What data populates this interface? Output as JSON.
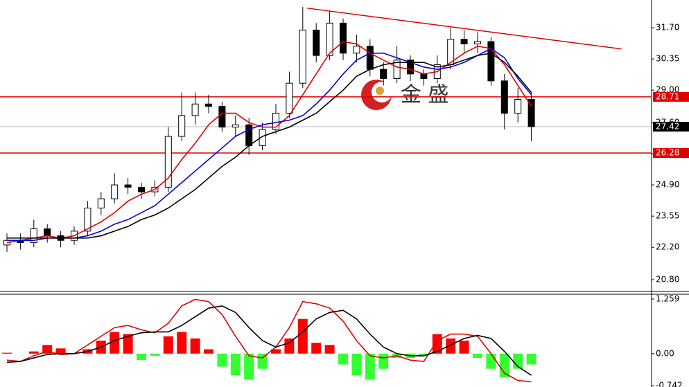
{
  "chart_data": [
    {
      "type": "candlestick",
      "open": [
        22.3,
        22.5,
        22.4,
        23.0,
        22.7,
        22.5,
        22.9,
        23.9,
        24.3,
        24.9,
        24.8,
        24.6,
        24.8,
        27.0,
        27.9,
        28.4,
        28.3,
        27.4,
        27.5,
        26.6,
        27.3,
        28.0,
        29.3,
        31.6,
        30.5,
        31.9,
        30.6,
        30.9,
        29.9,
        29.5,
        30.3,
        29.7,
        29.5,
        30.1,
        31.2,
        31.0,
        31.1,
        29.4,
        28.0,
        28.6
      ],
      "high": [
        22.8,
        22.8,
        23.4,
        23.2,
        22.9,
        23.1,
        24.2,
        24.6,
        25.4,
        25.2,
        25.0,
        25.1,
        27.4,
        28.9,
        28.9,
        28.8,
        28.5,
        27.9,
        27.8,
        27.6,
        28.4,
        29.8,
        32.6,
        31.9,
        32.4,
        32.1,
        31.4,
        31.2,
        30.2,
        30.9,
        30.5,
        29.9,
        30.5,
        31.7,
        31.6,
        31.5,
        31.3,
        29.7,
        29.1,
        28.9
      ],
      "low": [
        22.0,
        22.1,
        22.2,
        22.4,
        22.2,
        22.3,
        22.7,
        23.6,
        24.1,
        24.5,
        24.3,
        24.4,
        24.6,
        26.8,
        27.5,
        28.0,
        27.2,
        27.0,
        26.2,
        26.4,
        27.1,
        27.8,
        29.1,
        30.2,
        30.3,
        30.3,
        30.2,
        29.6,
        29.2,
        29.3,
        29.4,
        29.2,
        29.3,
        29.9,
        30.6,
        30.6,
        29.2,
        27.3,
        27.6,
        26.8
      ],
      "close": [
        22.5,
        22.4,
        23.0,
        22.7,
        22.5,
        22.9,
        23.9,
        24.3,
        24.9,
        24.8,
        24.6,
        24.8,
        27.0,
        27.9,
        28.4,
        28.3,
        27.4,
        27.5,
        26.6,
        27.3,
        28.0,
        29.3,
        31.6,
        30.5,
        31.9,
        30.6,
        30.9,
        29.9,
        29.5,
        30.3,
        29.7,
        29.5,
        30.1,
        31.2,
        31.0,
        31.1,
        29.4,
        28.0,
        28.6,
        27.42
      ],
      "overlays": [
        {
          "color": "#e00000",
          "values": [
            22.4,
            22.5,
            22.6,
            22.7,
            22.6,
            22.7,
            23.0,
            23.3,
            23.7,
            24.2,
            24.5,
            24.7,
            25.2,
            26.0,
            26.7,
            27.5,
            28.0,
            28.0,
            27.6,
            27.4,
            27.4,
            27.9,
            28.8,
            29.7,
            30.6,
            31.1,
            31.0,
            30.6,
            30.3,
            30.0,
            29.9,
            29.7,
            29.8,
            30.2,
            30.6,
            30.9,
            30.8,
            30.1,
            29.2,
            28.3
          ]
        },
        {
          "color": "#0000e0",
          "values": [
            22.5,
            22.5,
            22.5,
            22.6,
            22.6,
            22.6,
            22.7,
            22.9,
            23.2,
            23.4,
            23.7,
            24.0,
            24.5,
            25.0,
            25.5,
            26.0,
            26.5,
            27.0,
            27.3,
            27.5,
            27.6,
            27.7,
            27.9,
            28.4,
            29.0,
            29.7,
            30.3,
            30.6,
            30.6,
            30.4,
            30.2,
            30.0,
            29.9,
            30.0,
            30.2,
            30.5,
            30.8,
            30.4,
            29.5,
            28.8
          ]
        },
        {
          "color": "#000000",
          "values": [
            22.6,
            22.6,
            22.6,
            22.6,
            22.6,
            22.6,
            22.6,
            22.7,
            22.9,
            23.1,
            23.4,
            23.6,
            23.9,
            24.3,
            24.7,
            25.2,
            25.7,
            26.1,
            26.6,
            27.0,
            27.2,
            27.4,
            27.7,
            28.0,
            28.5,
            29.0,
            29.6,
            29.9,
            30.1,
            30.2,
            30.2,
            30.2,
            30.0,
            30.1,
            30.3,
            30.5,
            30.6,
            30.2,
            29.6,
            28.9
          ]
        }
      ],
      "ylim": [
        20.32,
        32.9
      ],
      "yticks": [
        {
          "value": 20.8,
          "label": "20.80"
        },
        {
          "value": 22.2,
          "label": "22.20"
        },
        {
          "value": 23.55,
          "label": "23.55"
        },
        {
          "value": 24.9,
          "label": "24.90"
        },
        {
          "value": 26.25,
          "label": "26.25"
        },
        {
          "value": 27.6,
          "label": "27.60"
        },
        {
          "value": 29.0,
          "label": "29.00"
        },
        {
          "value": 30.35,
          "label": "30.35"
        },
        {
          "value": 31.7,
          "label": "31.70"
        }
      ],
      "levels": [
        {
          "value": 28.71,
          "color": "#e00000"
        },
        {
          "value": 26.28,
          "color": "#e00000"
        }
      ],
      "last_price": 27.42,
      "trendline": {
        "x": [
          22.3,
          45.7
        ],
        "y": [
          32.55,
          30.78
        ],
        "color": "#e00000"
      },
      "watermark": "金 盛"
    },
    {
      "type": "macd",
      "histogram": [
        0.02,
        0.0,
        0.05,
        0.2,
        0.12,
        0.0,
        0.1,
        0.3,
        0.5,
        0.45,
        -0.15,
        -0.05,
        0.4,
        0.5,
        0.35,
        0.1,
        -0.3,
        -0.5,
        -0.6,
        -0.35,
        0.1,
        0.35,
        0.8,
        0.25,
        0.2,
        -0.25,
        -0.5,
        -0.6,
        -0.35,
        -0.1,
        -0.1,
        -0.05,
        0.45,
        0.35,
        0.3,
        -0.1,
        -0.35,
        -0.55,
        -0.35,
        -0.25
      ],
      "up_color": "#ff0000",
      "down_color": "#33ff33",
      "lines": [
        {
          "color": "#e00000",
          "values": [
            -0.15,
            -0.18,
            -0.05,
            0.05,
            -0.02,
            0.0,
            0.2,
            0.4,
            0.6,
            0.65,
            0.55,
            0.48,
            0.7,
            1.1,
            1.25,
            1.2,
            0.9,
            0.4,
            -0.05,
            -0.1,
            0.15,
            0.6,
            1.2,
            1.15,
            1.05,
            0.75,
            0.3,
            -0.05,
            -0.1,
            -0.05,
            -0.15,
            -0.18,
            0.3,
            0.45,
            0.45,
            0.4,
            0.0,
            -0.45,
            -0.62,
            -0.65
          ]
        },
        {
          "color": "#000000",
          "values": [
            -0.2,
            -0.18,
            -0.1,
            -0.02,
            0.0,
            0.0,
            0.05,
            0.15,
            0.3,
            0.4,
            0.48,
            0.5,
            0.5,
            0.65,
            0.85,
            1.05,
            1.1,
            0.95,
            0.6,
            0.3,
            0.15,
            0.25,
            0.5,
            0.8,
            0.95,
            1.0,
            0.8,
            0.45,
            0.15,
            0.0,
            -0.05,
            -0.05,
            0.05,
            0.2,
            0.35,
            0.42,
            0.35,
            0.05,
            -0.3,
            -0.5
          ]
        }
      ],
      "ylim": [
        -0.77,
        1.37
      ],
      "yticks": [
        1.259,
        {
          "value": 0,
          "label": "0.00"
        },
        -0.742
      ]
    }
  ]
}
